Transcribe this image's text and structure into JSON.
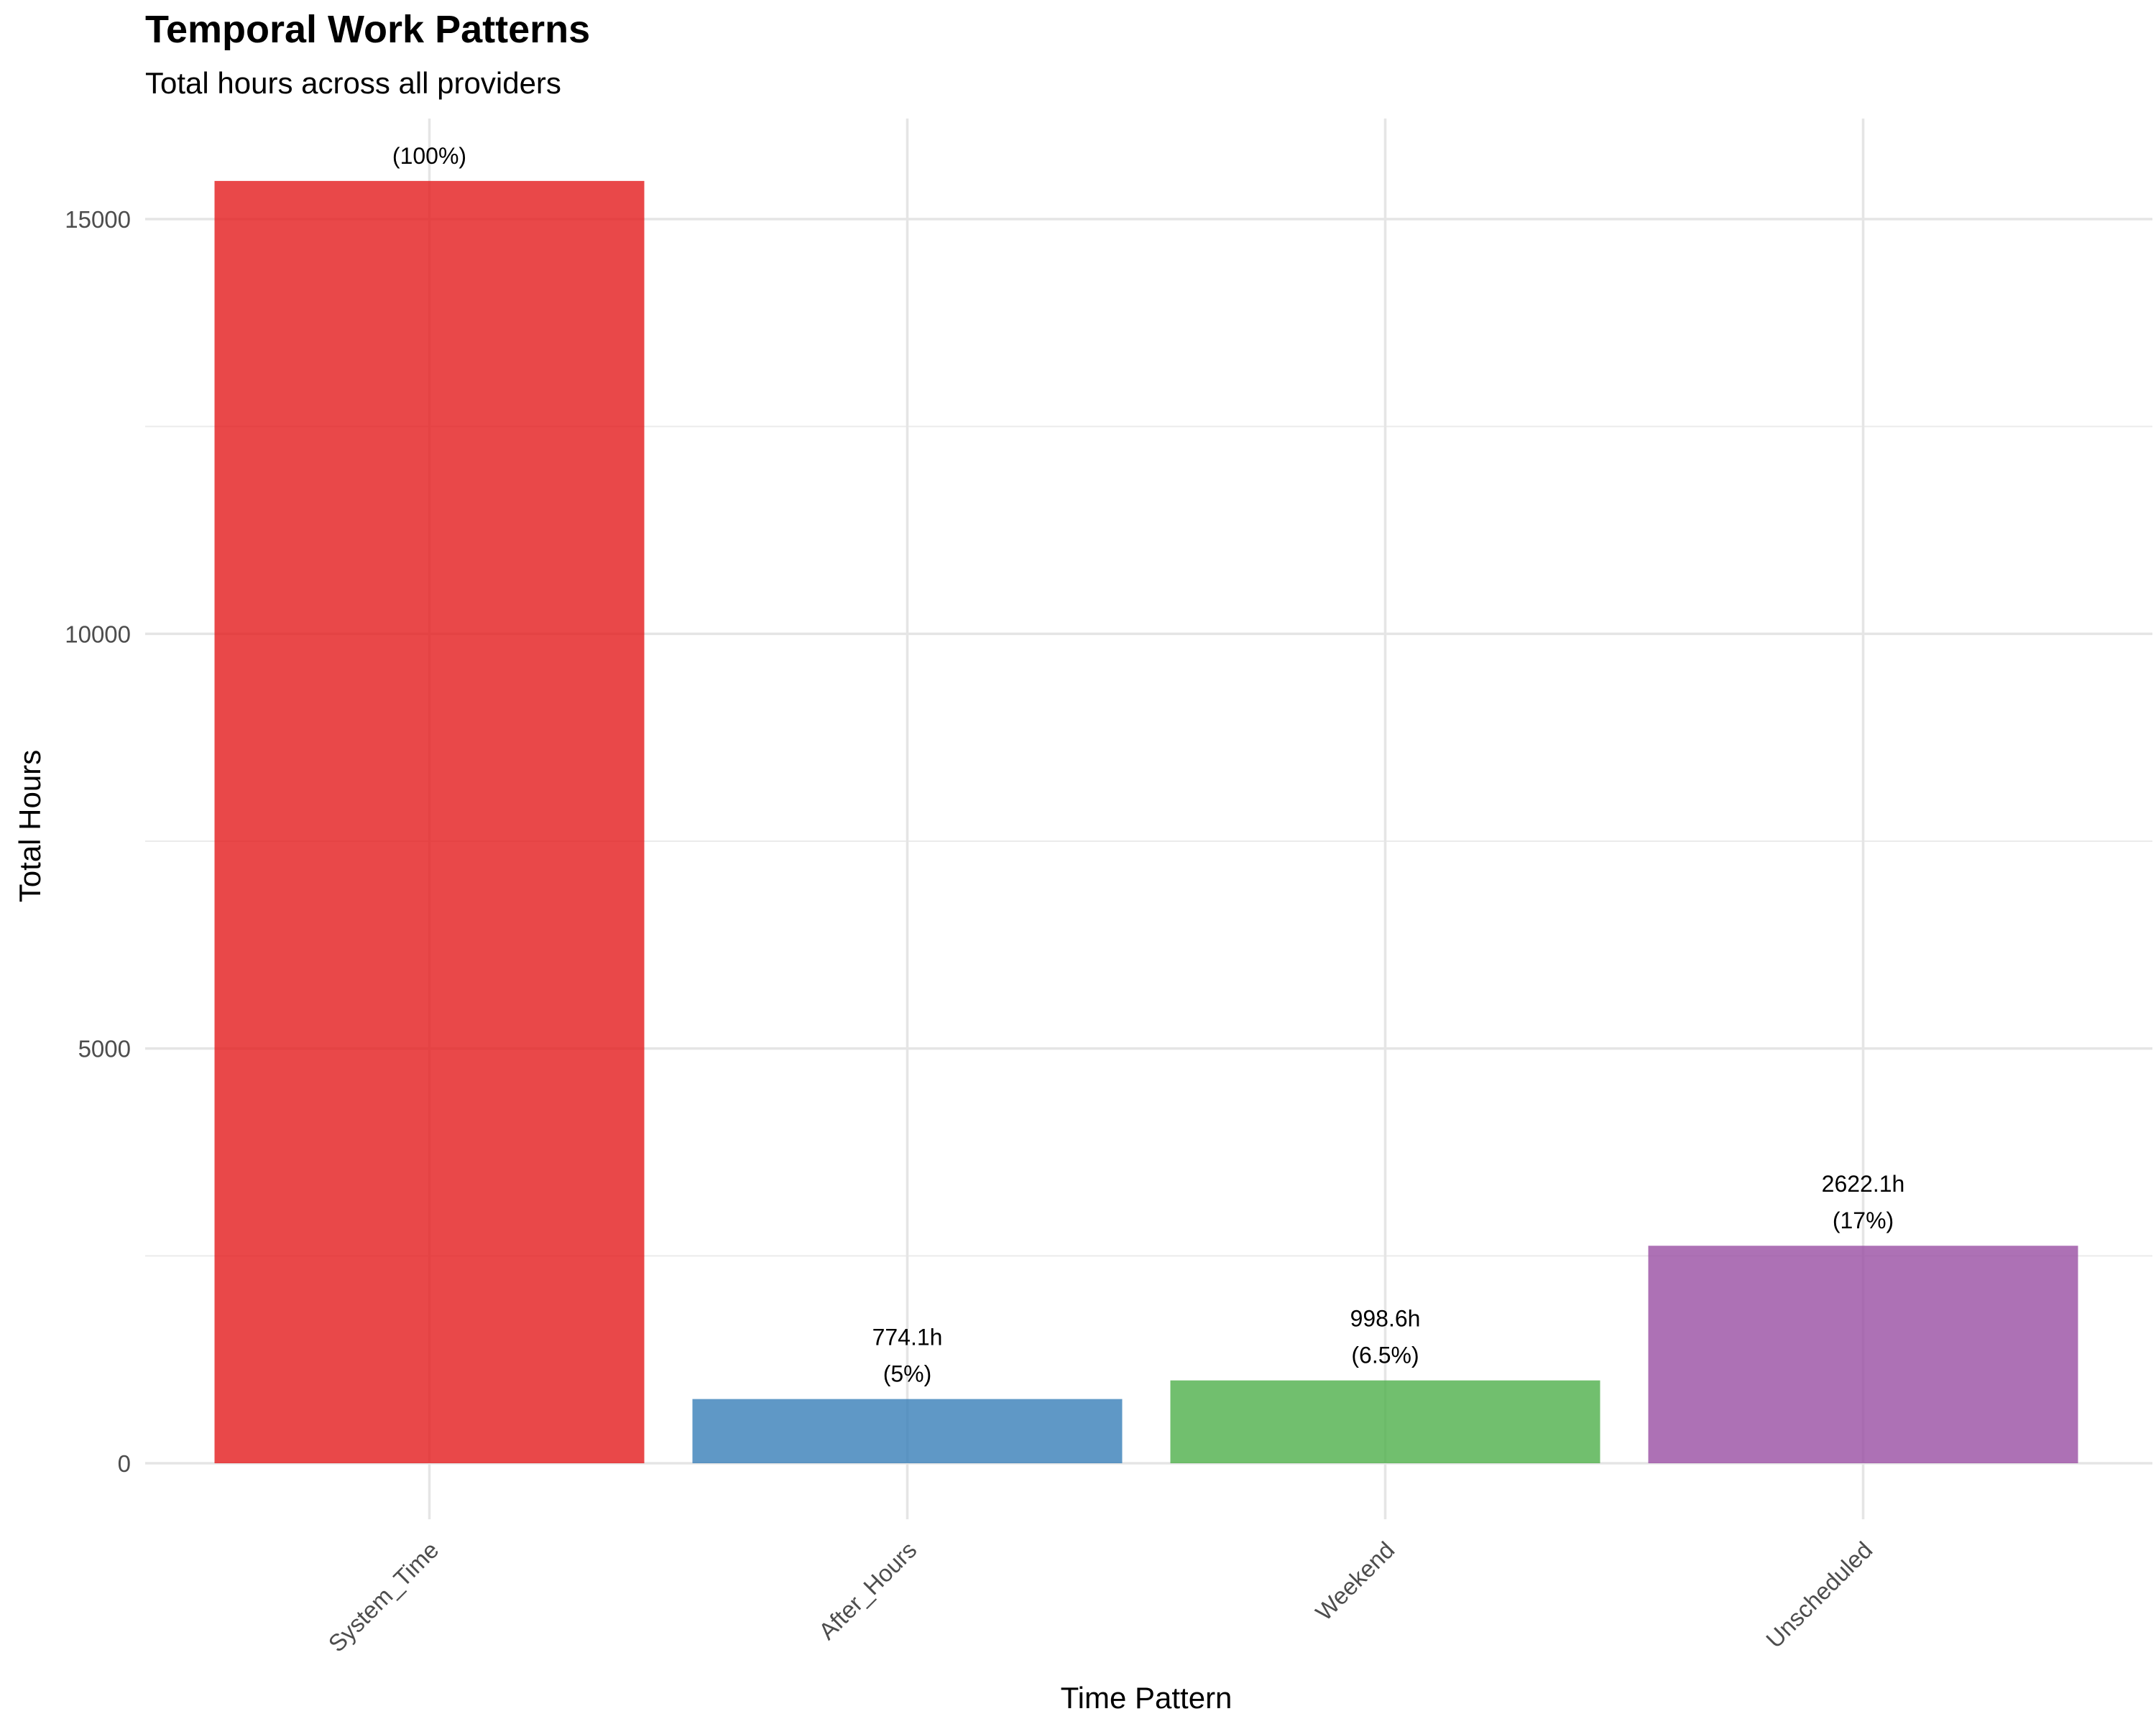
{
  "chart_data": {
    "type": "bar",
    "title": "Temporal Work Patterns",
    "subtitle": "Total hours across all providers",
    "xlabel": "Time Pattern",
    "ylabel": "Total Hours",
    "categories": [
      "System_Time",
      "After_Hours",
      "Weekend",
      "Unscheduled"
    ],
    "values": [
      15460,
      774.1,
      998.6,
      2622.1
    ],
    "value_labels": [
      "",
      "774.1h",
      "998.6h",
      "2622.1h"
    ],
    "pct_labels": [
      "(100%)",
      "(5%)",
      "(6.5%)",
      "(17%)"
    ],
    "colors": [
      "#E41A1C",
      "#377EB8",
      "#4DAF4A",
      "#984EA3"
    ],
    "bar_opacity": 0.8,
    "ylim": [
      -1100,
      16200
    ],
    "yticks": [
      0,
      5000,
      10000,
      15000
    ],
    "yminor": [
      2500,
      7500,
      12500
    ],
    "grid": true,
    "legend": "none"
  }
}
